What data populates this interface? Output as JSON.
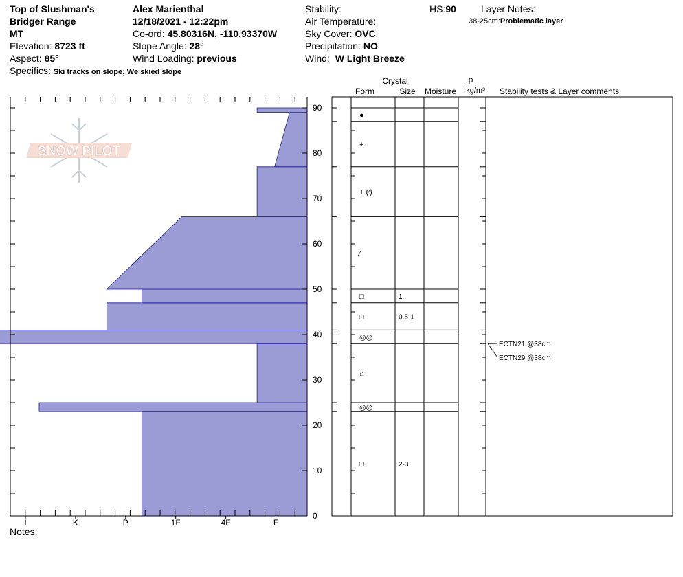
{
  "header": {
    "location_line1": "Top of Slushman's",
    "location_line2": "Bridger Range",
    "state": "MT",
    "elevation_label": "Elevation:",
    "elevation_value": "8723 ft",
    "aspect_label": "Aspect:",
    "aspect_value": "85°",
    "specifics_label": "Specifics:",
    "specifics_value": "Ski tracks on slope; We skied slope",
    "observer": "Alex Marienthal",
    "datetime": "12/18/2021 - 12:22pm",
    "coord_label": "Co-ord:",
    "coord_value": "45.80316N, -110.93370W",
    "slope_label": "Slope Angle:",
    "slope_value": "28°",
    "wind_loading_label": "Wind Loading:",
    "wind_loading_value": "previous",
    "stability_label": "Stability:",
    "air_temp_label": "Air Temperature:",
    "sky_label": "Sky Cover:",
    "sky_value": "OVC",
    "precip_label": "Precipitation:",
    "precip_value": "NO",
    "wind_label": "Wind:",
    "wind_value": "W Light Breeze",
    "hs_label": "HS:",
    "hs_value": "90",
    "layer_notes_label": "Layer Notes:",
    "layer_note_range": "38-25cm:",
    "layer_note_text": "Problematic layer"
  },
  "notes_label": "Notes:",
  "watermark": "SNOW PILOT",
  "columns": {
    "crystal": "Crystal",
    "form": "Form",
    "size": "Size",
    "moisture": "Moisture",
    "rho": "ρ",
    "density_unit": "kg/m³",
    "stability": "Stability tests & Layer comments"
  },
  "colors": {
    "hardness_fill": "#9b9bd6",
    "hardness_stroke": "#1a1a99"
  },
  "chart_data": {
    "type": "area",
    "title": "",
    "xlabel": "",
    "ylabel": "",
    "ylim": [
      0,
      90
    ],
    "y_ticks": [
      "0",
      "10",
      "20",
      "30",
      "40",
      "50",
      "60",
      "70",
      "80",
      "90"
    ],
    "hardness_scale": [
      "I",
      "K",
      "P",
      "1F",
      "4F",
      "F"
    ],
    "hardness_profile": [
      {
        "bottom": 0,
        "top": 23,
        "hardness_bottom": 3.3,
        "hardness_top": 3.3
      },
      {
        "bottom": 23,
        "top": 25,
        "hardness_bottom": 5.35,
        "hardness_top": 5.35
      },
      {
        "bottom": 25,
        "top": 38,
        "hardness_bottom": 1.0,
        "hardness_top": 1.0
      },
      {
        "bottom": 38,
        "top": 41,
        "hardness_bottom": 6.67,
        "hardness_top": 6.67
      },
      {
        "bottom": 41,
        "top": 47,
        "hardness_bottom": 4.0,
        "hardness_top": 4.0
      },
      {
        "bottom": 47,
        "top": 50,
        "hardness_bottom": 3.3,
        "hardness_top": 3.3
      },
      {
        "bottom": 50,
        "top": 66,
        "hardness_bottom": 4.0,
        "hardness_top": 2.5
      },
      {
        "bottom": 66,
        "top": 77,
        "hardness_bottom": 1.0,
        "hardness_top": 1.0
      },
      {
        "bottom": 77,
        "top": 89,
        "hardness_bottom": 0.65,
        "hardness_top": 0.35
      },
      {
        "bottom": 89,
        "top": 90,
        "hardness_bottom": 1.0,
        "hardness_top": 1.0
      }
    ],
    "layers": [
      {
        "top": 90,
        "bottom": 87,
        "form": "●",
        "size": ""
      },
      {
        "top": 87,
        "bottom": 77,
        "form": "+",
        "size": ""
      },
      {
        "top": 77,
        "bottom": 66,
        "form": "+ (⁄)",
        "size": ""
      },
      {
        "top": 66,
        "bottom": 50,
        "form": "⁄",
        "size": ""
      },
      {
        "top": 50,
        "bottom": 47,
        "form": "□",
        "size": "1"
      },
      {
        "top": 47,
        "bottom": 41,
        "form": "□",
        "size": "0.5-1"
      },
      {
        "top": 41,
        "bottom": 38,
        "form": "◎◎",
        "size": ""
      },
      {
        "top": 38,
        "bottom": 25,
        "form": "⌂",
        "size": ""
      },
      {
        "top": 25,
        "bottom": 23,
        "form": "◎◎",
        "size": ""
      },
      {
        "top": 23,
        "bottom": 0,
        "form": "□",
        "size": "2-3"
      }
    ],
    "stability_tests": [
      {
        "label": "ECTN21 @38cm",
        "depth": 38
      },
      {
        "label": "ECTN29 @38cm",
        "depth": 38
      }
    ]
  }
}
